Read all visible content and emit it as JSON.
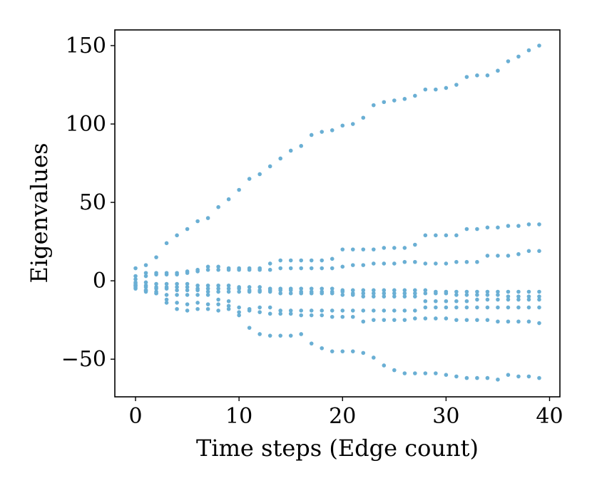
{
  "chart_data": {
    "type": "scatter",
    "title": "",
    "xlabel": "Time steps (Edge count)",
    "ylabel": "Eigenvalues",
    "xlim": [
      -2,
      41
    ],
    "ylim": [
      -74,
      160
    ],
    "xticks": [
      0,
      10,
      20,
      30,
      40
    ],
    "xtick_labels": [
      "0",
      "10",
      "20",
      "30",
      "40"
    ],
    "yticks": [
      -50,
      0,
      50,
      100,
      150
    ],
    "ytick_labels": [
      "−50",
      "0",
      "50",
      "100",
      "150"
    ],
    "grid": false,
    "legend": "none",
    "marker_color": "#6aafd4",
    "x": [
      0,
      1,
      2,
      3,
      4,
      5,
      6,
      7,
      8,
      9,
      10,
      11,
      12,
      13,
      14,
      15,
      16,
      17,
      18,
      19,
      20,
      21,
      22,
      23,
      24,
      25,
      26,
      27,
      28,
      29,
      30,
      31,
      32,
      33,
      34,
      35,
      36,
      37,
      38,
      39
    ],
    "series": [
      {
        "values": [
          8,
          10,
          15,
          24,
          29,
          33,
          38,
          40,
          47,
          52,
          58,
          65,
          68,
          73,
          78,
          83,
          86,
          93,
          95,
          96,
          99,
          100,
          104,
          112,
          114,
          115,
          116,
          118,
          122,
          122,
          123,
          125,
          130,
          131,
          131,
          134,
          140,
          143,
          147,
          150
        ]
      },
      {
        "values": [
          3,
          5,
          5,
          5,
          5,
          6,
          7,
          9,
          9,
          8,
          8,
          8,
          8,
          11,
          13,
          13,
          13,
          13,
          13,
          14,
          20,
          20,
          20,
          20,
          21,
          21,
          21,
          23,
          29,
          29,
          29,
          29,
          33,
          33,
          34,
          34,
          35,
          35,
          36,
          36
        ]
      },
      {
        "values": [
          1,
          3,
          4,
          4,
          4,
          5,
          6,
          7,
          7,
          7,
          7,
          7,
          7,
          7,
          8,
          8,
          8,
          8,
          8,
          8,
          9,
          10,
          10,
          11,
          11,
          11,
          12,
          12,
          11,
          11,
          11,
          12,
          12,
          12,
          16,
          16,
          16,
          17,
          19,
          19
        ]
      },
      {
        "values": [
          -1,
          -1,
          -2,
          -2,
          -2,
          -2,
          -3,
          -3,
          -3,
          -3,
          -4,
          -4,
          -4,
          -5,
          -5,
          -5,
          -5,
          -5,
          -5,
          -5,
          -6,
          -6,
          -6,
          -6,
          -6,
          -6,
          -6,
          -6,
          -6,
          -7,
          -7,
          -7,
          -7,
          -7,
          -7,
          -7,
          -7,
          -7,
          -7,
          -7
        ]
      },
      {
        "values": [
          -2,
          -3,
          -4,
          -4,
          -4,
          -4,
          -5,
          -5,
          -5,
          -5,
          -5,
          -6,
          -6,
          -6,
          -6,
          -6,
          -7,
          -7,
          -7,
          -7,
          -7,
          -8,
          -8,
          -8,
          -8,
          -8,
          -8,
          -8,
          -8,
          -8,
          -8,
          -9,
          -9,
          -9,
          -9,
          -9,
          -10,
          -10,
          -10,
          -10
        ]
      },
      {
        "values": [
          -3,
          -4,
          -5,
          -5,
          -6,
          -6,
          -6,
          -7,
          -7,
          -7,
          -7,
          -7,
          -7,
          -7,
          -8,
          -8,
          -8,
          -8,
          -8,
          -8,
          -9,
          -9,
          -10,
          -10,
          -10,
          -10,
          -10,
          -10,
          -13,
          -13,
          -13,
          -13,
          -13,
          -12,
          -12,
          -12,
          -12,
          -12,
          -12,
          -12
        ]
      },
      {
        "values": [
          -5,
          -6,
          -7,
          -9,
          -9,
          -9,
          -9,
          -9,
          -12,
          -13,
          -20,
          -18,
          -17,
          -17,
          -19,
          -19,
          -19,
          -19,
          -19,
          -19,
          -19,
          -19,
          -19,
          -19,
          -19,
          -19,
          -19,
          -19,
          -17,
          -17,
          -17,
          -17,
          -17,
          -17,
          -17,
          -17,
          -17,
          -17,
          -17,
          -17
        ]
      },
      {
        "values": [
          -3,
          -6,
          -8,
          -14,
          -18,
          -19,
          -18,
          -18,
          -19,
          -18,
          -22,
          -30,
          -34,
          -35,
          -35,
          -35,
          -34,
          -40,
          -43,
          -45,
          -45,
          -45,
          -46,
          -49,
          -54,
          -57,
          -59,
          -59,
          -59,
          -59,
          -60,
          -61,
          -62,
          -62,
          -62,
          -63,
          -60,
          -61,
          -61,
          -62
        ]
      },
      {
        "values": [
          -4,
          -7,
          -8,
          -12,
          -14,
          -15,
          -14,
          -15,
          -15,
          -16,
          -17,
          -19,
          -20,
          -21,
          -21,
          -21,
          -22,
          -22,
          -22,
          -23,
          -23,
          -23,
          -26,
          -25,
          -25,
          -25,
          -25,
          -24,
          -24,
          -24,
          -24,
          -25,
          -25,
          -25,
          -25,
          -26,
          -26,
          -26,
          -26,
          -27
        ]
      }
    ]
  }
}
